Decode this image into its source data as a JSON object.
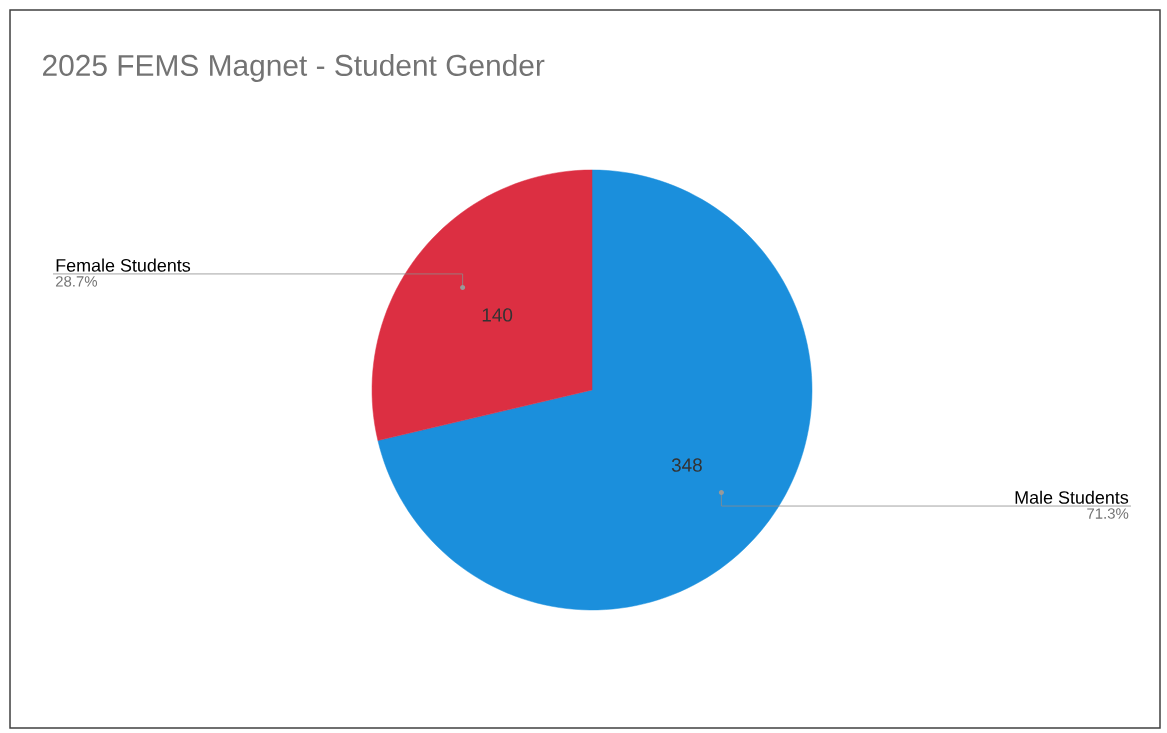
{
  "chart_data": {
    "type": "pie",
    "title": "2025 FEMS Magnet - Student Gender",
    "categories": [
      "Male Students",
      "Female Students"
    ],
    "values": [
      348,
      140
    ],
    "colors": [
      "#1b8fdc",
      "#dc2f42"
    ],
    "data_labels": true,
    "annotations": [
      "71.3%",
      "28.7%"
    ]
  }
}
